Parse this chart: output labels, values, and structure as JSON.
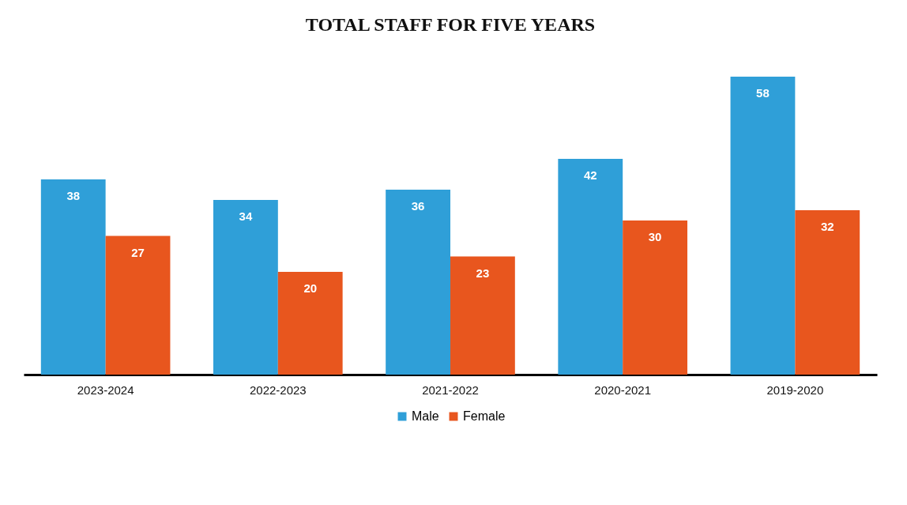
{
  "chart_data": {
    "type": "bar",
    "title": "TOTAL STAFF FOR FIVE YEARS",
    "categories": [
      "2023-2024",
      "2022-2023",
      "2021-2022",
      "2020-2021",
      "2019-2020"
    ],
    "series": [
      {
        "name": "Male",
        "color": "#2f9fd8",
        "values": [
          38,
          34,
          36,
          42,
          58
        ]
      },
      {
        "name": "Female",
        "color": "#e8561e",
        "values": [
          27,
          20,
          23,
          30,
          32
        ]
      }
    ],
    "data_labels": true,
    "legend": "bottom"
  }
}
